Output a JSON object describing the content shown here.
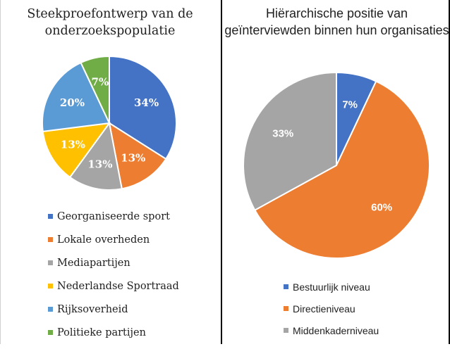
{
  "chart_data": [
    {
      "type": "pie",
      "title": "Steekproefontwerp van de onderzoekspopulatie",
      "categories": [
        "Georganiseerde sport",
        "Lokale overheden",
        "Mediapartijen",
        "Nederlandse Sportraad",
        "Rijksoverheid",
        "Politieke partijen"
      ],
      "values": [
        34,
        13,
        13,
        13,
        20,
        7
      ],
      "labels": [
        "34%",
        "13%",
        "13%",
        "13%",
        "20%",
        "7%"
      ],
      "colors": [
        "#4472C4",
        "#ED7D31",
        "#A5A5A5",
        "#FFC000",
        "#5B9BD5",
        "#70AD47"
      ],
      "legend_position": "bottom"
    },
    {
      "type": "pie",
      "title": "Hiërarchische positie van geïnterviewden binnen hun organisaties",
      "categories": [
        "Bestuurlijk niveau",
        "Directieniveau",
        "Middenkaderniveau"
      ],
      "values": [
        7,
        60,
        33
      ],
      "labels": [
        "7%",
        "60%",
        "33%"
      ],
      "colors": [
        "#4472C4",
        "#ED7D31",
        "#A5A5A5"
      ],
      "legend_position": "bottom"
    }
  ]
}
